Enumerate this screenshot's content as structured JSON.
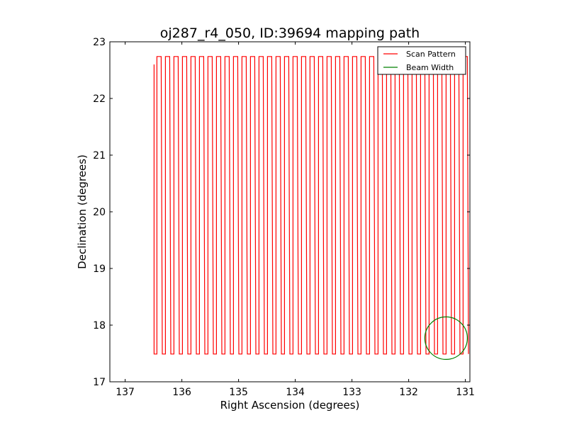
{
  "chart_data": {
    "type": "line",
    "title": "oj287_r4_050, ID:39694 mapping path",
    "xlabel": "Right Ascension (degrees)",
    "ylabel": "Declination (degrees)",
    "xlim": [
      137.27,
      130.92
    ],
    "ylim": [
      17,
      23
    ],
    "xticks": [
      137,
      136,
      135,
      134,
      133,
      132,
      131
    ],
    "yticks": [
      17,
      18,
      19,
      20,
      21,
      22,
      23
    ],
    "grid": false,
    "legend": {
      "placement": "top-right",
      "entries": [
        "Scan Pattern",
        "Beam Width"
      ]
    },
    "series": [
      {
        "name": "Scan Pattern",
        "color": "#ff0000",
        "scan": {
          "ra_start": 136.49,
          "dec_start": 22.6,
          "ra_first_leg": 136.44,
          "ra_step": 0.15,
          "cycles": 37,
          "dec_top": 22.74,
          "dec_bottom": 17.49,
          "top_width": 0.075,
          "down_offset": 0.095
        }
      },
      {
        "name": "Beam Width",
        "color": "#008000",
        "circle": {
          "ra": 131.34,
          "dec": 17.77,
          "radius": 0.375
        }
      }
    ]
  }
}
